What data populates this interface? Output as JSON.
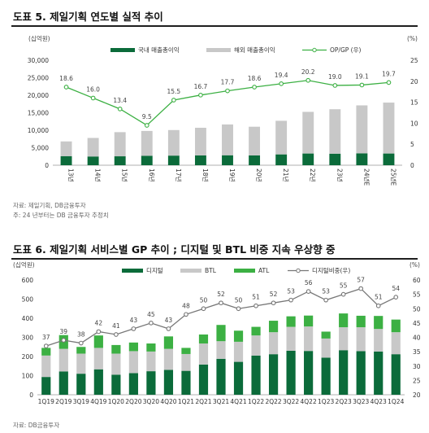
{
  "chart_data": [
    {
      "type": "bar+line",
      "title": "도표 5. 제일기획 연도별 실적 추이",
      "left_unit": "(십억원)",
      "right_unit": "(%)",
      "categories": [
        "13년",
        "14년",
        "15년",
        "16년",
        "17년",
        "18년",
        "19년",
        "20년",
        "21년",
        "22년",
        "23년",
        "24년E",
        "25년E"
      ],
      "series": [
        {
          "name": "국내 매출총이익",
          "kind": "bar",
          "stack": "a",
          "color": "#0b6b3a",
          "values": [
            2600,
            2500,
            2550,
            2700,
            2750,
            2800,
            2850,
            2800,
            3100,
            3350,
            3300,
            3400,
            3350
          ]
        },
        {
          "name": "해외 매출총이익",
          "kind": "bar",
          "stack": "a",
          "color": "#c8c8c8",
          "values": [
            4200,
            5300,
            6900,
            7100,
            7300,
            7900,
            8800,
            8200,
            9600,
            11900,
            12700,
            13700,
            14550
          ]
        },
        {
          "name": "OP/GP (우)",
          "kind": "line",
          "axis": "right",
          "color": "#3cb043",
          "values": [
            18.6,
            16.0,
            13.4,
            9.5,
            15.5,
            16.7,
            17.7,
            18.6,
            19.4,
            20.2,
            19.0,
            19.1,
            19.7
          ],
          "labels": [
            "18.6",
            "16.0",
            "13.4",
            "9.5",
            "15.5",
            "16.7",
            "17.7",
            "18.6",
            "19.4",
            "20.2",
            "19.0",
            "19.1",
            "19.7"
          ]
        }
      ],
      "ylim": [
        0,
        30000
      ],
      "yticks": [
        "0",
        "5,000",
        "10,000",
        "15,000",
        "20,000",
        "25,000",
        "30,000"
      ],
      "y2lim": [
        0,
        25
      ],
      "y2ticks": [
        "0",
        "5",
        "10",
        "15",
        "20",
        "25"
      ],
      "notes": [
        "자료: 제일기획, DB금융투자",
        "주: 24 년부터는 DB 금융투자 추정치"
      ]
    },
    {
      "type": "bar+line",
      "title": "도표 6. 제일기획 서비스별 GP 추이 ; 디지털 및 BTL 비중 지속 우상향 중",
      "left_unit": "(십억원)",
      "right_unit": "(%)",
      "categories": [
        "1Q19",
        "2Q19",
        "3Q19",
        "4Q19",
        "1Q20",
        "2Q20",
        "3Q20",
        "4Q20",
        "1Q21",
        "2Q21",
        "3Q21",
        "4Q21",
        "1Q22",
        "2Q22",
        "3Q22",
        "4Q22",
        "1Q23",
        "2Q23",
        "3Q23",
        "4Q23",
        "1Q24"
      ],
      "series": [
        {
          "name": "디지털",
          "kind": "bar",
          "stack": "a",
          "color": "#0b6b3a",
          "values": [
            93,
            122,
            110,
            133,
            105,
            113,
            123,
            130,
            125,
            158,
            188,
            172,
            205,
            212,
            230,
            229,
            194,
            233,
            228,
            226,
            212
          ]
        },
        {
          "name": "BTL",
          "kind": "bar",
          "stack": "a",
          "color": "#c8c8c8",
          "values": [
            112,
            118,
            105,
            112,
            110,
            115,
            103,
            110,
            88,
            110,
            92,
            105,
            105,
            115,
            125,
            128,
            100,
            120,
            125,
            118,
            115
          ]
        },
        {
          "name": "ATL",
          "kind": "bar",
          "stack": "a",
          "color": "#3cb043",
          "values": [
            40,
            72,
            35,
            65,
            45,
            45,
            42,
            65,
            32,
            47,
            85,
            58,
            45,
            60,
            55,
            57,
            36,
            72,
            60,
            68,
            66
          ]
        },
        {
          "name": "디지털비중(우)",
          "kind": "line",
          "axis": "right",
          "color": "#777777",
          "values": [
            37,
            39,
            38,
            42,
            41,
            43,
            45,
            43,
            48,
            50,
            52,
            50,
            51,
            52,
            53,
            56,
            53,
            55,
            57,
            51,
            54
          ],
          "labels": [
            "37",
            "39",
            "38",
            "42",
            "41",
            "43",
            "45",
            "43",
            "48",
            "50",
            "52",
            "50",
            "51",
            "52",
            "53",
            "56",
            "53",
            "55",
            "57",
            "51",
            "54"
          ]
        }
      ],
      "ylim": [
        0,
        600
      ],
      "yticks": [
        "0",
        "100",
        "200",
        "300",
        "400",
        "500",
        "600"
      ],
      "y2lim": [
        20,
        60
      ],
      "y2ticks": [
        "20",
        "25",
        "30",
        "35",
        "40",
        "45",
        "50",
        "55",
        "60"
      ],
      "notes": [
        "자료: DB금융투자"
      ]
    }
  ]
}
